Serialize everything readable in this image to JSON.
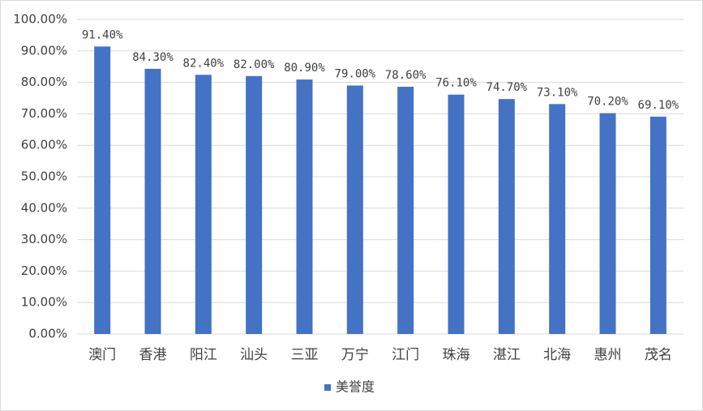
{
  "chart_data": {
    "type": "bar",
    "categories": [
      "澳门",
      "香港",
      "阳江",
      "汕头",
      "三亚",
      "万宁",
      "江门",
      "珠海",
      "湛江",
      "北海",
      "惠州",
      "茂名"
    ],
    "series": [
      {
        "name": "美誉度",
        "color": "#4472c4",
        "values": [
          91.4,
          84.3,
          82.4,
          82.0,
          80.9,
          79.0,
          78.6,
          76.1,
          74.7,
          73.1,
          70.2,
          69.1
        ],
        "value_labels": [
          "91.40%",
          "84.30%",
          "82.40%",
          "82.00%",
          "80.90%",
          "79.00%",
          "78.60%",
          "76.10%",
          "74.70%",
          "73.10%",
          "70.20%",
          "69.10%"
        ]
      }
    ],
    "ylim": [
      0,
      100
    ],
    "yticks": [
      {
        "value": 0,
        "label": "0.00%"
      },
      {
        "value": 10,
        "label": "10.00%"
      },
      {
        "value": 20,
        "label": "20.00%"
      },
      {
        "value": 30,
        "label": "30.00%"
      },
      {
        "value": 40,
        "label": "40.00%"
      },
      {
        "value": 50,
        "label": "50.00%"
      },
      {
        "value": 60,
        "label": "60.00%"
      },
      {
        "value": 70,
        "label": "70.00%"
      },
      {
        "value": 80,
        "label": "80.00%"
      },
      {
        "value": 90,
        "label": "90.00%"
      },
      {
        "value": 100,
        "label": "100.00%"
      }
    ],
    "grid": true,
    "legend": "bottom"
  }
}
